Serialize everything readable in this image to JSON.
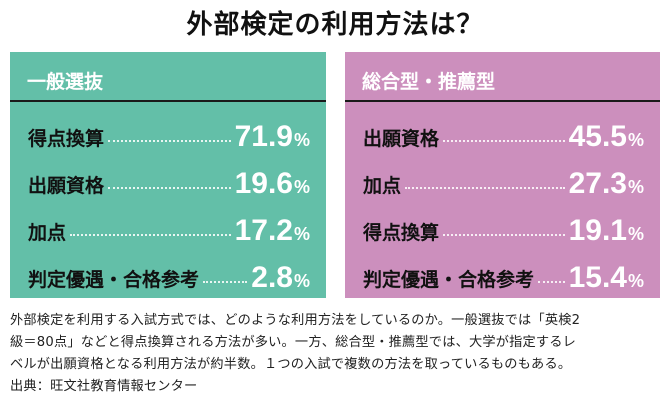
{
  "title": "外部検定の利用方法は？",
  "panels": [
    {
      "heading": "一般選抜",
      "color": "#63bfa8",
      "rows": [
        {
          "label": "得点換算",
          "value": "71.9",
          "unit": "%"
        },
        {
          "label": "出願資格",
          "value": "19.6",
          "unit": "%"
        },
        {
          "label": "加点",
          "value": "17.2",
          "unit": "%"
        },
        {
          "label": "判定優遇・合格参考",
          "value": "2.8",
          "unit": "%"
        }
      ]
    },
    {
      "heading": "総合型・推薦型",
      "color": "#cc8fbd",
      "rows": [
        {
          "label": "出願資格",
          "value": "45.5",
          "unit": "%"
        },
        {
          "label": "加点",
          "value": "27.3",
          "unit": "%"
        },
        {
          "label": "得点換算",
          "value": "19.1",
          "unit": "%"
        },
        {
          "label": "判定優遇・合格参考",
          "value": "15.4",
          "unit": "%"
        }
      ]
    }
  ],
  "caption": {
    "lines": [
      "外部検定を利用する入試方式では、どのような利用方法をしているのか。一般選抜では「英検2",
      "級＝80点」などと得点換算される方法が多い。一方、総合型・推薦型では、大学が指定するレ",
      "ベルが出願資格となる利用方法が約半数。１つの入試で複数の方法を取っているものもある。",
      "出典：旺文社教育情報センター"
    ]
  }
}
